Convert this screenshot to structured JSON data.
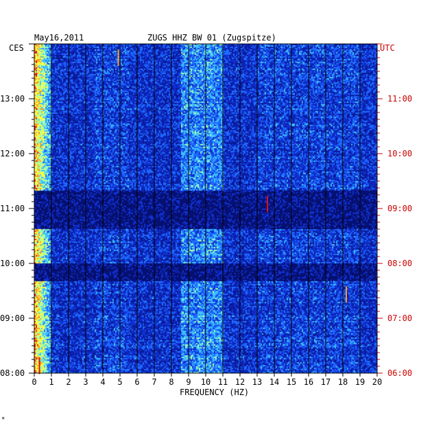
{
  "header": {
    "date": "May16,2011",
    "station": "ZUGS HHZ BW 01 (Zugspitze)",
    "left_tz": "CES",
    "right_tz": "UTC",
    "footnote": "*"
  },
  "colors": {
    "background": "#0a1a9a",
    "quiet_band": "#061071",
    "grid": "#000000",
    "utc_text": "#cc0000"
  },
  "chart_data": {
    "type": "heatmap",
    "title": "ZUGS HHZ BW 01 (Zugspitze)",
    "xlabel": "FREQUENCY (HZ)",
    "xlim": [
      0,
      20
    ],
    "x_ticks": [
      "0",
      "1",
      "2",
      "3",
      "4",
      "5",
      "6",
      "7",
      "8",
      "9",
      "10",
      "11",
      "12",
      "13",
      "14",
      "15",
      "16",
      "17",
      "18",
      "19",
      "20"
    ],
    "y_left_ticks": [
      "13:00",
      "12:00",
      "11:00",
      "10:00",
      "09:00",
      "08:00"
    ],
    "y_right_ticks": [
      "11:00",
      "10:00",
      "09:00",
      "08:00",
      "07:00",
      "06:00"
    ],
    "left_time_range": [
      "08:00",
      "14:00"
    ],
    "right_time_range": [
      "06:00",
      "12:00"
    ],
    "quiet_intervals_cest": [
      [
        "11:20",
        "10:39"
      ],
      [
        "10:00",
        "09:42"
      ]
    ],
    "notable_events": [
      {
        "freq_hz": 13.6,
        "time_cest": "11:05",
        "color": "red"
      },
      {
        "freq_hz": 18.2,
        "time_cest": "09:26",
        "color": "orange"
      },
      {
        "freq_hz": 4.9,
        "time_cest": "13:45",
        "color": "orange"
      },
      {
        "freq_hz": 0.3,
        "time_cest": "08:08",
        "color": "red"
      }
    ],
    "colormap": [
      "#0a1a9a",
      "#1030d0",
      "#1e6aff",
      "#3fc0ff",
      "#a0ffb0",
      "#ffff40",
      "#ff9a20",
      "#e01010"
    ]
  }
}
